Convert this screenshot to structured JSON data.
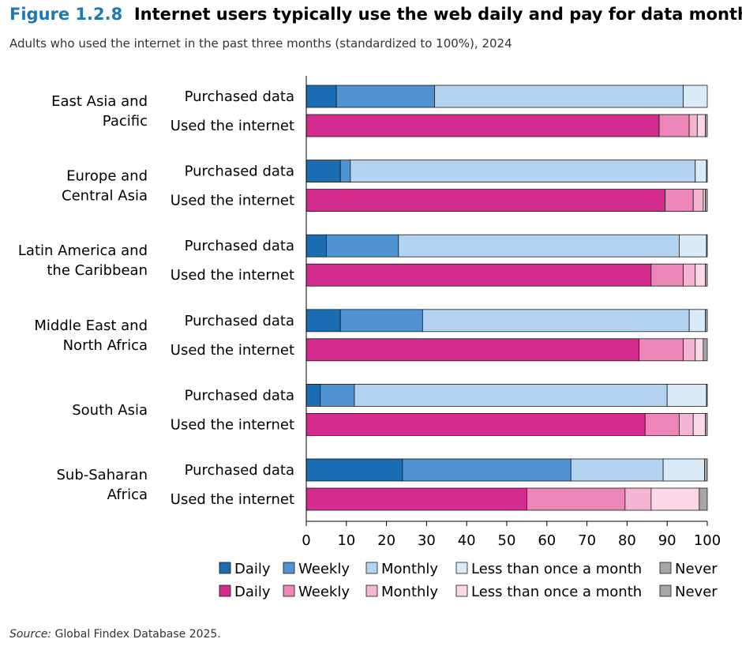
{
  "figure": {
    "label": "Figure 1.2.8",
    "title": "Internet users typically use the web daily and pay for data monthly",
    "subtitle": "Adults who used the internet in the past three months (standardized to 100%), 2024",
    "source_label": "Source:",
    "source_text": " Global Findex Database 2025."
  },
  "chart_data": {
    "type": "bar",
    "orientation": "horizontal",
    "stacked": true,
    "xlim": [
      0,
      100
    ],
    "xticks": [
      0,
      10,
      20,
      30,
      40,
      50,
      60,
      70,
      80,
      90,
      100
    ],
    "grid": false,
    "legend_position": "bottom",
    "row_labels": [
      "Purchased data",
      "Used the internet"
    ],
    "groups": [
      {
        "label": "East Asia and\nPacific",
        "purchased": [
          7.5,
          24.5,
          62,
          6,
          0
        ],
        "used": [
          88,
          7.5,
          2,
          2,
          0.5
        ]
      },
      {
        "label": "Europe and\nCentral Asia",
        "purchased": [
          8.5,
          2.5,
          86,
          2.8,
          0.2
        ],
        "used": [
          89.5,
          7,
          2.5,
          0.5,
          0.5
        ]
      },
      {
        "label": "Latin America and\nthe Caribbean",
        "purchased": [
          5,
          18,
          70,
          6.8,
          0.2
        ],
        "used": [
          86,
          8,
          3,
          2.5,
          0.5
        ]
      },
      {
        "label": "Middle East and\nNorth Africa",
        "purchased": [
          8.5,
          20.5,
          66.5,
          4,
          0.5
        ],
        "used": [
          83,
          11,
          3,
          2,
          1
        ]
      },
      {
        "label": "South Asia",
        "purchased": [
          3.5,
          8.5,
          78,
          9.8,
          0.2
        ],
        "used": [
          84.5,
          8.5,
          3.5,
          3,
          0.5
        ]
      },
      {
        "label": "Sub-Saharan\nAfrica",
        "purchased": [
          24,
          42,
          23,
          10.3,
          0.7
        ],
        "used": [
          55,
          24.5,
          6.5,
          12,
          2
        ]
      }
    ],
    "legends": [
      {
        "series_set": "purchased",
        "items": [
          {
            "name": "Daily",
            "color": "#1a6db3"
          },
          {
            "name": "Weekly",
            "color": "#4f93d3"
          },
          {
            "name": "Monthly",
            "color": "#b3d3f0"
          },
          {
            "name": "Less than once a month",
            "color": "#d9eaf8"
          },
          {
            "name": "Never",
            "color": "#a6a6a6"
          }
        ]
      },
      {
        "series_set": "used",
        "items": [
          {
            "name": "Daily",
            "color": "#d42b8f"
          },
          {
            "name": "Weekly",
            "color": "#ec86b9"
          },
          {
            "name": "Monthly",
            "color": "#f3b5d2"
          },
          {
            "name": "Less than once a month",
            "color": "#fad8e8"
          },
          {
            "name": "Never",
            "color": "#a6a6a6"
          }
        ]
      }
    ]
  }
}
